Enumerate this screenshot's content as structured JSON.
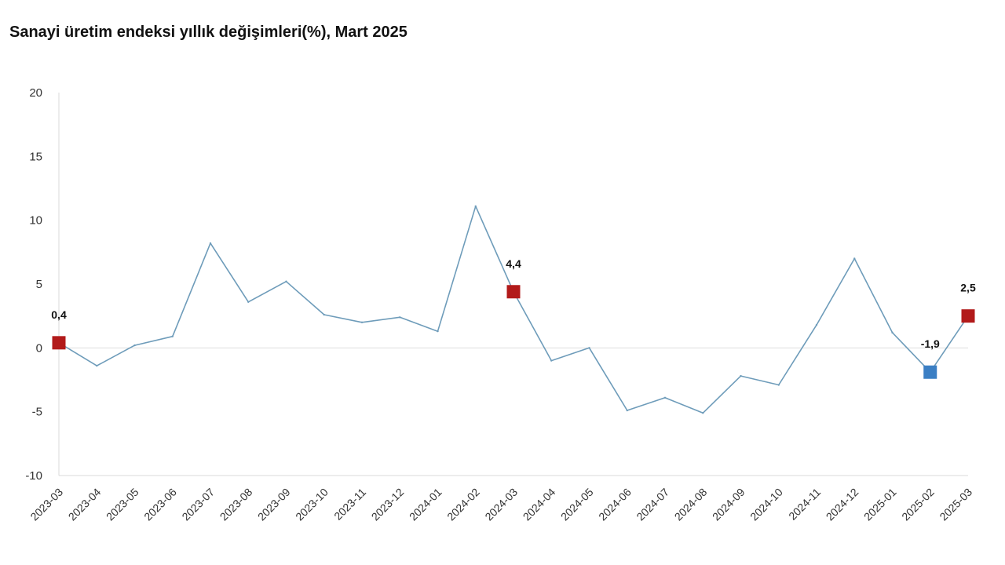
{
  "chart_data": {
    "type": "line",
    "title": "Sanayi üretim endeksi yıllık değişimleri(%), Mart 2025",
    "xlabel": "",
    "ylabel": "",
    "ylim": [
      -10,
      20
    ],
    "yticks": [
      "20",
      "15",
      "10",
      "5",
      "0",
      "-5",
      "-10"
    ],
    "categories": [
      "2023-03",
      "2023-04",
      "2023-05",
      "2023-06",
      "2023-07",
      "2023-08",
      "2023-09",
      "2023-10",
      "2023-11",
      "2023-12",
      "2024-01",
      "2024-02",
      "2024-03",
      "2024-04",
      "2024-05",
      "2024-06",
      "2024-07",
      "2024-08",
      "2024-09",
      "2024-10",
      "2024-11",
      "2024-12",
      "2025-01",
      "2025-02",
      "2025-03"
    ],
    "series": [
      {
        "values": [
          0.4,
          -1.4,
          0.2,
          0.9,
          8.2,
          3.6,
          5.2,
          2.6,
          2.0,
          2.4,
          1.3,
          11.1,
          4.4,
          -1.0,
          0.0,
          -4.9,
          -3.9,
          -5.1,
          -2.2,
          -2.9,
          1.8,
          7.0,
          1.2,
          -1.9,
          2.5
        ],
        "color": "#6e9cba"
      }
    ],
    "highlighted_points": [
      {
        "category": "2023-03",
        "value": 0.4,
        "label": "0,4",
        "color": "#b21a1a"
      },
      {
        "category": "2024-03",
        "value": 4.4,
        "label": "4,4",
        "color": "#b21a1a"
      },
      {
        "category": "2025-02",
        "value": -1.9,
        "label": "-1,9",
        "color": "#3b7fc4"
      },
      {
        "category": "2025-03",
        "value": 2.5,
        "label": "2,5",
        "color": "#b21a1a"
      }
    ],
    "grid": false,
    "zero_line": true
  }
}
